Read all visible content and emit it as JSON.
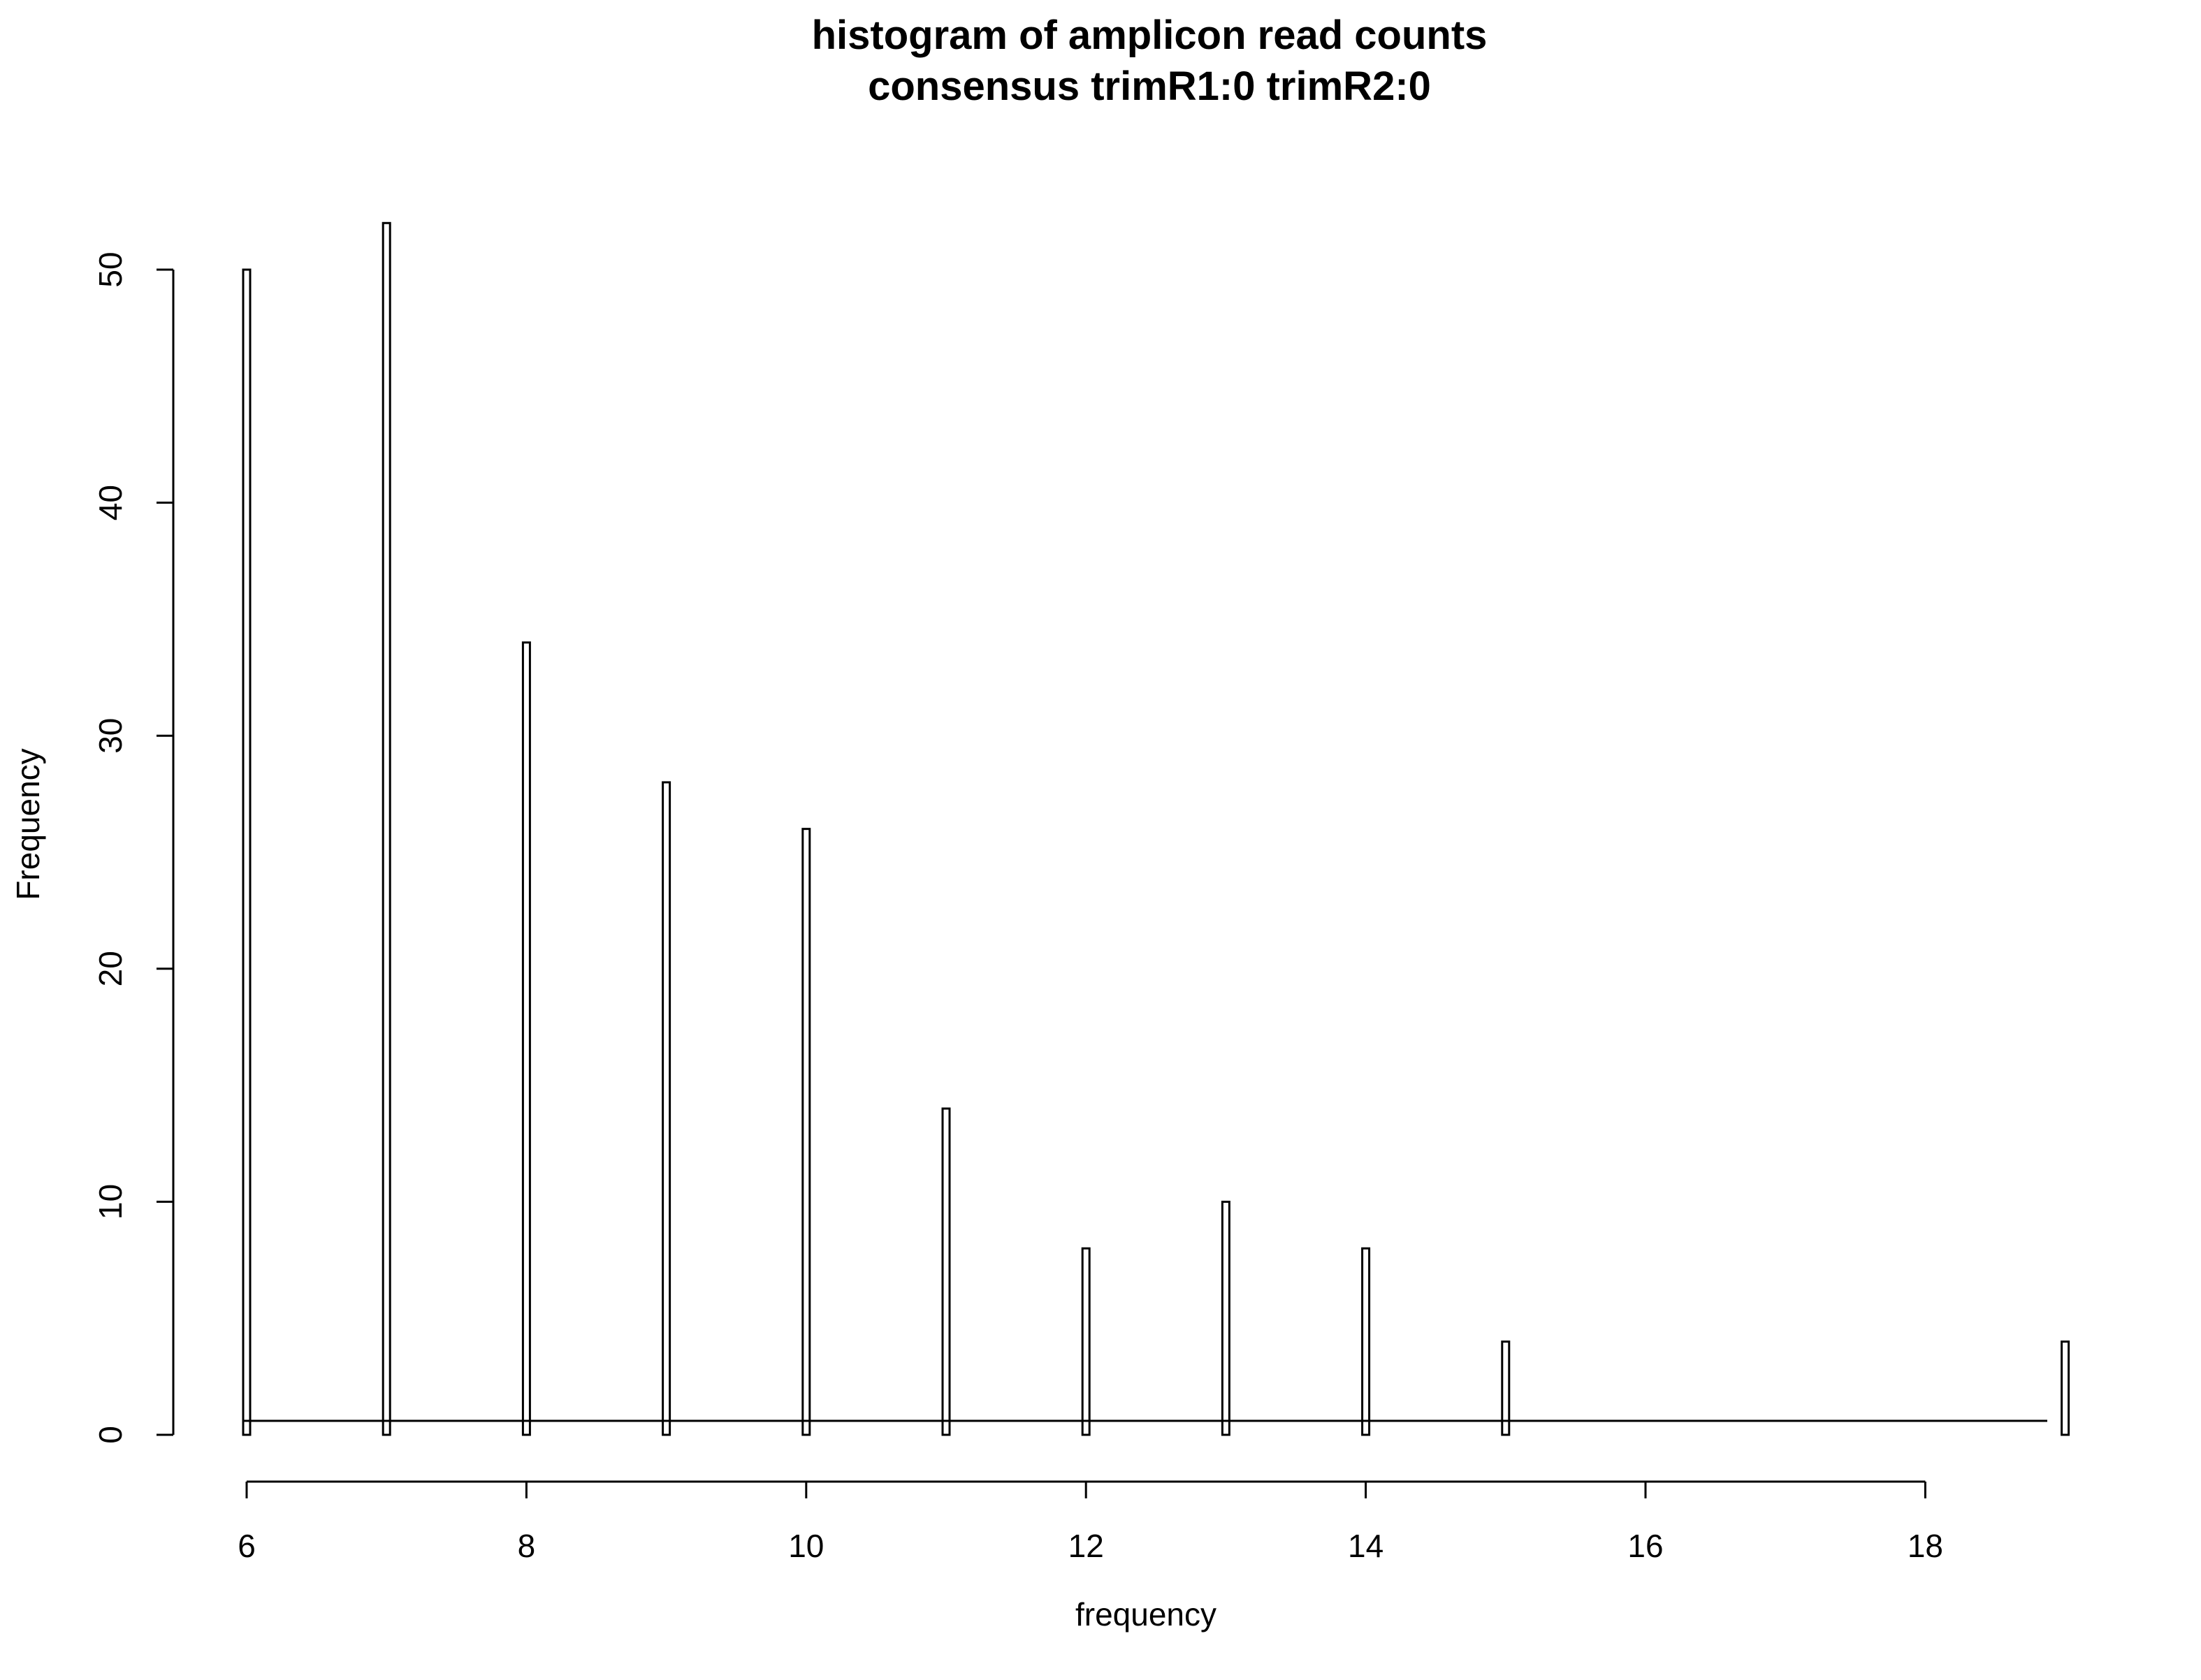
{
  "chart_data": {
    "type": "bar",
    "title": "histogram of amplicon read counts",
    "subtitle": "consensus trimR1:0 trimR2:0",
    "xlabel": "frequency",
    "ylabel": "Frequency",
    "x": [
      6,
      7,
      8,
      9,
      10,
      11,
      12,
      13,
      14,
      15,
      19
    ],
    "values": [
      50,
      52,
      34,
      28,
      26,
      14,
      8,
      10,
      8,
      4,
      4
    ],
    "xlim": [
      6,
      19
    ],
    "ylim": [
      0,
      52
    ],
    "x_ticks": [
      6,
      8,
      10,
      12,
      14,
      16,
      18
    ],
    "y_ticks": [
      0,
      10,
      20,
      30,
      40,
      50
    ],
    "grid": false,
    "legend": "none",
    "bar_fill": "#ffffff",
    "bar_stroke": "#000000"
  }
}
